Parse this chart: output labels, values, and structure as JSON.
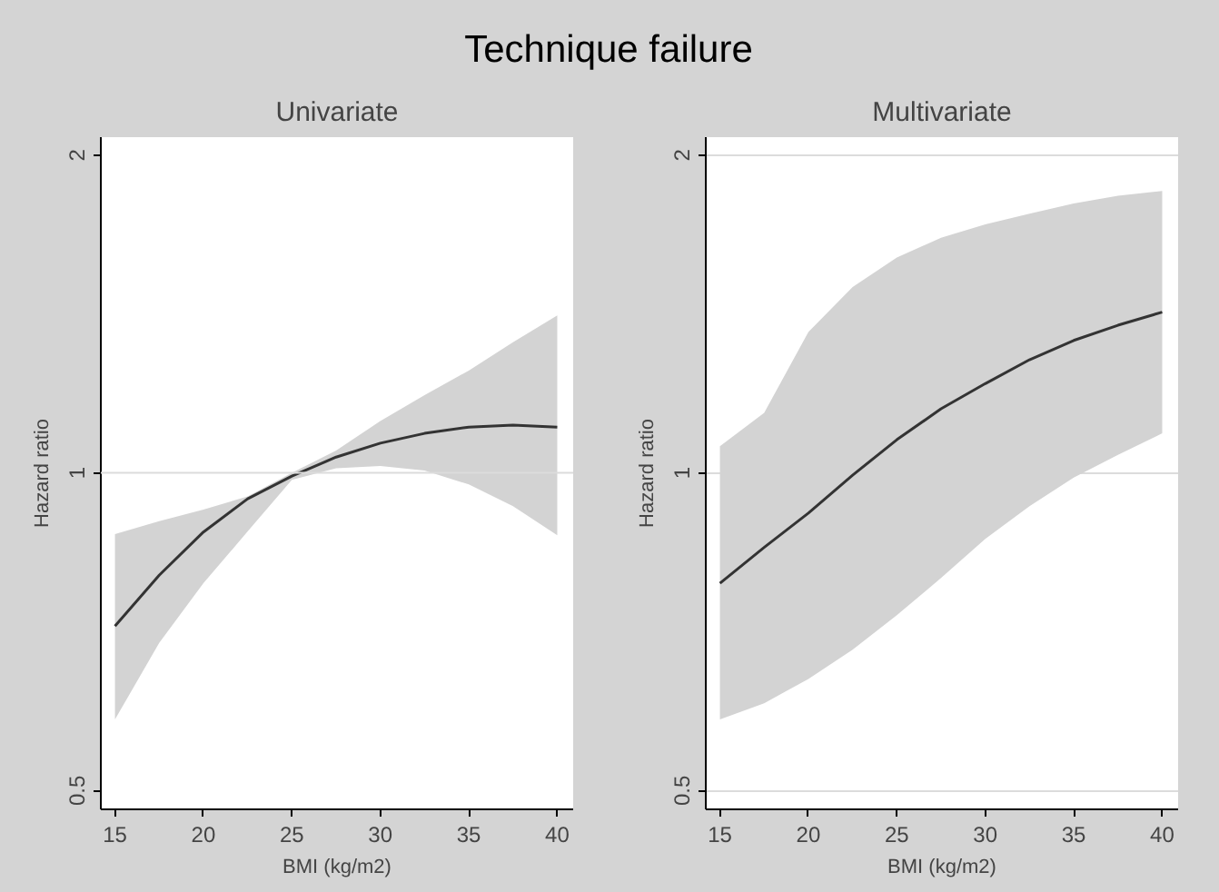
{
  "chart_data": [
    {
      "type": "line",
      "title": "Univariate",
      "annotations": [
        "Technique failure"
      ],
      "xlabel": "BMI (kg/m2)",
      "ylabel": "Hazard ratio",
      "log": "y",
      "xlim": [
        14.2,
        40.9
      ],
      "ylim": [
        0.48,
        2.08
      ],
      "xticks": [
        15,
        20,
        25,
        30,
        35,
        40
      ],
      "yticks": [
        0.5,
        1,
        2
      ],
      "grid": false,
      "x": [
        15,
        17.5,
        20,
        22.5,
        25,
        27.5,
        30,
        32.5,
        35,
        37.5,
        40
      ],
      "series": [
        {
          "color": "#333333",
          "values": [
            0.716,
            0.8,
            0.879,
            0.945,
            0.993,
            1.035,
            1.067,
            1.09,
            1.105,
            1.11,
            1.105
          ],
          "lower": [
            0.584,
            0.69,
            0.786,
            0.88,
            0.985,
            1.01,
            1.015,
            1.005,
            0.975,
            0.93,
            0.873
          ],
          "upper": [
            0.875,
            0.9,
            0.923,
            0.95,
            1.0,
            1.05,
            1.12,
            1.185,
            1.25,
            1.33,
            1.41
          ]
        }
      ],
      "ref_lines": [
        {
          "axis": "y",
          "value": 1,
          "color": "#dcdcdc"
        }
      ]
    },
    {
      "type": "line",
      "title": "Multivariate",
      "xlabel": "BMI (kg/m2)",
      "ylabel": "Hazard ratio",
      "log": "y",
      "xlim": [
        14.2,
        40.9
      ],
      "ylim": [
        0.48,
        2.08
      ],
      "xticks": [
        15,
        20,
        25,
        30,
        35,
        40
      ],
      "yticks": [
        0.5,
        1,
        2
      ],
      "grid": "y",
      "x": [
        15,
        17.5,
        20,
        22.5,
        25,
        27.5,
        30,
        32.5,
        35,
        37.5,
        40
      ],
      "series": [
        {
          "color": "#333333",
          "values": [
            0.786,
            0.85,
            0.916,
            0.995,
            1.075,
            1.15,
            1.215,
            1.28,
            1.335,
            1.38,
            1.42
          ],
          "lower": [
            0.584,
            0.605,
            0.638,
            0.68,
            0.733,
            0.795,
            0.866,
            0.93,
            0.99,
            1.04,
            1.09
          ],
          "upper": [
            1.06,
            1.14,
            1.36,
            1.5,
            1.6,
            1.67,
            1.72,
            1.76,
            1.8,
            1.83,
            1.85
          ]
        }
      ]
    }
  ]
}
